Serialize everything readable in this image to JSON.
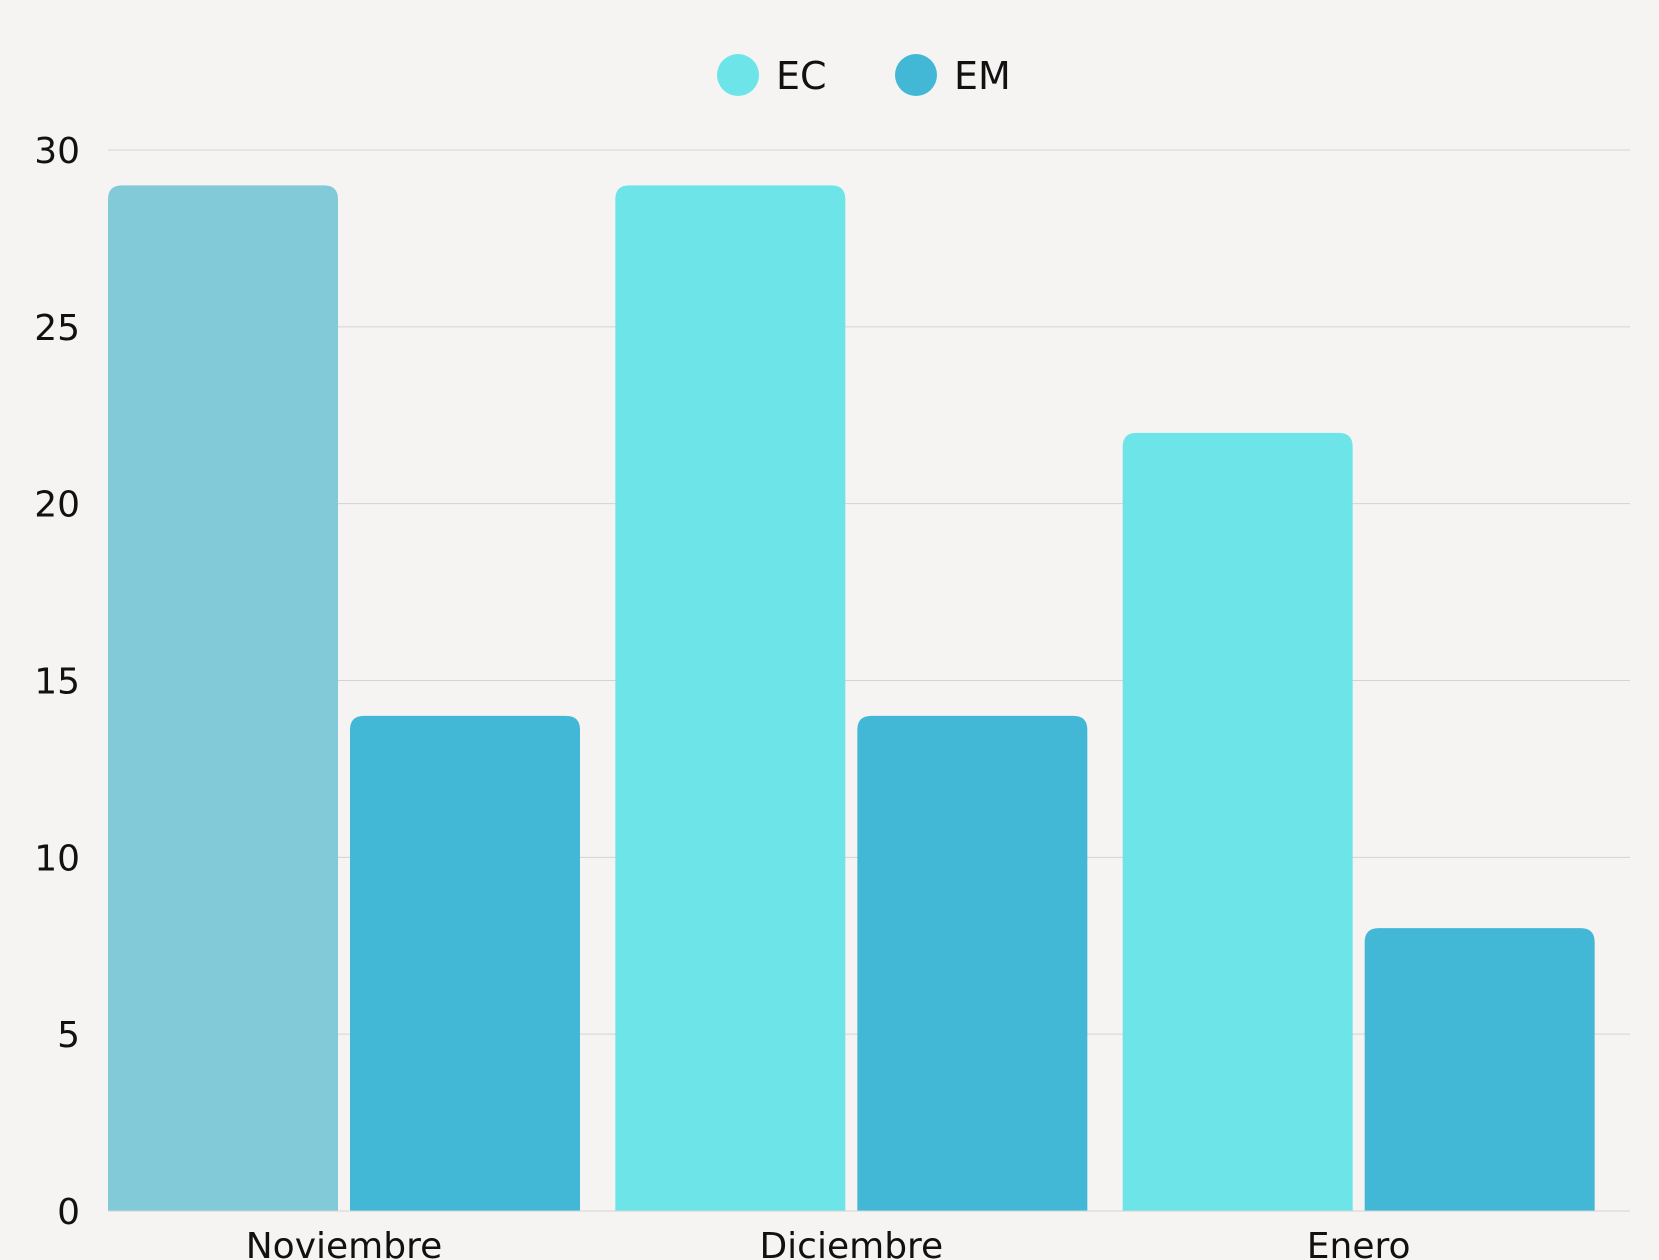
{
  "chart_data": {
    "type": "bar",
    "categories": [
      "Noviembre",
      "Diciembre",
      "Enero"
    ],
    "series": [
      {
        "name": "EC",
        "values": [
          29,
          29,
          22
        ],
        "color": "#6ce4e8",
        "point_colors": [
          "#82cad8",
          "#6ce4e8",
          "#6ce4e8"
        ]
      },
      {
        "name": "EM",
        "values": [
          14,
          14,
          8
        ],
        "color": "#43b8d6"
      }
    ],
    "ylim": [
      0,
      30
    ],
    "yticks": [
      0,
      5,
      10,
      15,
      20,
      25,
      30
    ],
    "grid": true,
    "legend_position": "top-center",
    "title": "",
    "xlabel": "",
    "ylabel": ""
  }
}
